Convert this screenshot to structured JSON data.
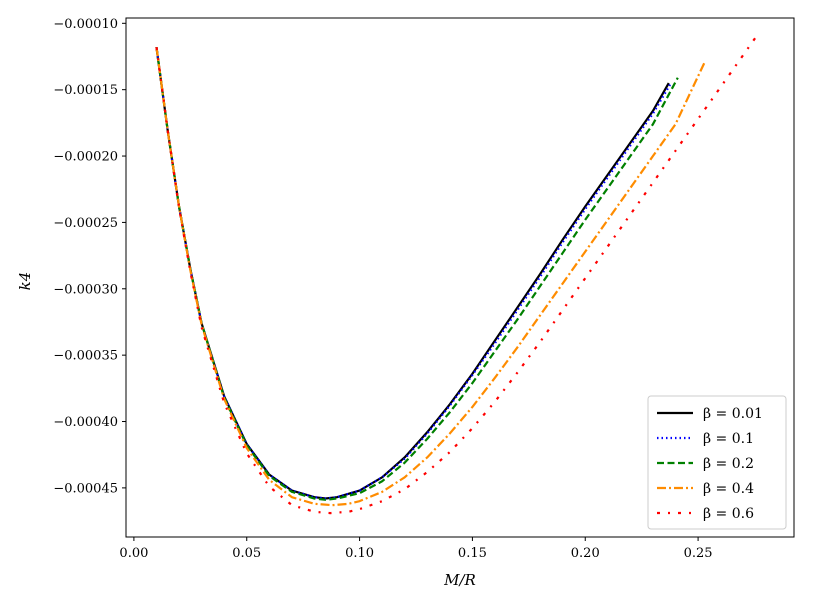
{
  "chart_data": {
    "type": "line",
    "xlabel": "M/R",
    "ylabel": "k4",
    "xlim": [
      -0.0035,
      0.2925
    ],
    "ylim": [
      -0.000487,
      -9.6e-05
    ],
    "xticks": [
      0.0,
      0.05,
      0.1,
      0.15,
      0.2,
      0.25
    ],
    "xtick_labels": [
      "0.00",
      "0.05",
      "0.10",
      "0.15",
      "0.20",
      "0.25"
    ],
    "yticks": [
      -0.0001,
      -0.00015,
      -0.0002,
      -0.00025,
      -0.0003,
      -0.00035,
      -0.0004,
      -0.00045
    ],
    "ytick_labels": [
      "−0.00010",
      "−0.00015",
      "−0.00020",
      "−0.00025",
      "−0.00030",
      "−0.00035",
      "−0.00040",
      "−0.00045"
    ],
    "grid": false,
    "legend_position": "bottom-right",
    "series": [
      {
        "name": "β = 0.01",
        "color": "#000000",
        "style": "solid",
        "x": [
          0.01,
          0.015,
          0.02,
          0.025,
          0.03,
          0.04,
          0.05,
          0.06,
          0.07,
          0.08,
          0.085,
          0.09,
          0.1,
          0.11,
          0.12,
          0.13,
          0.14,
          0.15,
          0.16,
          0.17,
          0.18,
          0.19,
          0.2,
          0.21,
          0.22,
          0.23,
          0.237
        ],
        "y": [
          -0.000118,
          -0.000181,
          -0.000238,
          -0.000285,
          -0.000326,
          -0.000381,
          -0.000417,
          -0.00044,
          -0.000452,
          -0.000457,
          -0.000458,
          -0.000457,
          -0.000452,
          -0.000442,
          -0.000427,
          -0.000408,
          -0.000387,
          -0.000364,
          -0.000339,
          -0.000314,
          -0.000289,
          -0.000263,
          -0.000238,
          -0.000214,
          -0.00019,
          -0.000166,
          -0.000145
        ]
      },
      {
        "name": "β = 0.1",
        "color": "#0000ff",
        "style": "dotted",
        "x": [
          0.01,
          0.015,
          0.02,
          0.025,
          0.03,
          0.04,
          0.05,
          0.06,
          0.07,
          0.08,
          0.085,
          0.09,
          0.1,
          0.11,
          0.12,
          0.13,
          0.14,
          0.15,
          0.16,
          0.17,
          0.18,
          0.19,
          0.2,
          0.21,
          0.22,
          0.23,
          0.238
        ],
        "y": [
          -0.000118,
          -0.000181,
          -0.000238,
          -0.000285,
          -0.000326,
          -0.000381,
          -0.000417,
          -0.00044,
          -0.000452,
          -0.000457,
          -0.000458,
          -0.000457,
          -0.000452,
          -0.000442,
          -0.000428,
          -0.000409,
          -0.000388,
          -0.000365,
          -0.000341,
          -0.000316,
          -0.000291,
          -0.000265,
          -0.00024,
          -0.000216,
          -0.000192,
          -0.000168,
          -0.000145
        ]
      },
      {
        "name": "β = 0.2",
        "color": "#008000",
        "style": "dashed",
        "x": [
          0.01,
          0.015,
          0.02,
          0.025,
          0.03,
          0.04,
          0.05,
          0.06,
          0.07,
          0.08,
          0.085,
          0.09,
          0.1,
          0.11,
          0.12,
          0.13,
          0.14,
          0.15,
          0.16,
          0.17,
          0.18,
          0.19,
          0.2,
          0.21,
          0.22,
          0.23,
          0.241
        ],
        "y": [
          -0.000118,
          -0.000181,
          -0.000238,
          -0.000285,
          -0.000326,
          -0.000382,
          -0.000418,
          -0.000441,
          -0.000453,
          -0.000458,
          -0.000459,
          -0.000458,
          -0.000454,
          -0.000445,
          -0.000431,
          -0.000413,
          -0.000393,
          -0.000371,
          -0.000347,
          -0.000323,
          -0.000298,
          -0.000273,
          -0.000248,
          -0.000224,
          -0.0002,
          -0.000176,
          -0.000141
        ]
      },
      {
        "name": "β = 0.4",
        "color": "#ff8c00",
        "style": "dashdot",
        "x": [
          0.01,
          0.015,
          0.02,
          0.025,
          0.03,
          0.04,
          0.05,
          0.06,
          0.07,
          0.08,
          0.088,
          0.095,
          0.1,
          0.11,
          0.12,
          0.13,
          0.14,
          0.15,
          0.16,
          0.17,
          0.18,
          0.19,
          0.2,
          0.21,
          0.22,
          0.23,
          0.24,
          0.253
        ],
        "y": [
          -0.000118,
          -0.000181,
          -0.000238,
          -0.000286,
          -0.000327,
          -0.000383,
          -0.00042,
          -0.000444,
          -0.000457,
          -0.000462,
          -0.000463,
          -0.000462,
          -0.00046,
          -0.000453,
          -0.000442,
          -0.000427,
          -0.000409,
          -0.000389,
          -0.000367,
          -0.000344,
          -0.00032,
          -0.000296,
          -0.000272,
          -0.000248,
          -0.000224,
          -0.0002,
          -0.000176,
          -0.000129
        ]
      },
      {
        "name": "β = 0.6",
        "color": "#ff0000",
        "style": "loosely-dashdot",
        "x": [
          0.01,
          0.015,
          0.02,
          0.025,
          0.03,
          0.04,
          0.05,
          0.06,
          0.07,
          0.08,
          0.087,
          0.095,
          0.1,
          0.11,
          0.12,
          0.13,
          0.14,
          0.15,
          0.16,
          0.17,
          0.18,
          0.19,
          0.2,
          0.21,
          0.22,
          0.23,
          0.24,
          0.25,
          0.26,
          0.277
        ],
        "y": [
          -0.000118,
          -0.000181,
          -0.000239,
          -0.000287,
          -0.000329,
          -0.000386,
          -0.000424,
          -0.000449,
          -0.000463,
          -0.000468,
          -0.000469,
          -0.000468,
          -0.000466,
          -0.00046,
          -0.000451,
          -0.000438,
          -0.000423,
          -0.000405,
          -0.000385,
          -0.000363,
          -0.00034,
          -0.000316,
          -0.000292,
          -0.000268,
          -0.000244,
          -0.00022,
          -0.000196,
          -0.000172,
          -0.000148,
          -0.000107
        ]
      }
    ]
  }
}
